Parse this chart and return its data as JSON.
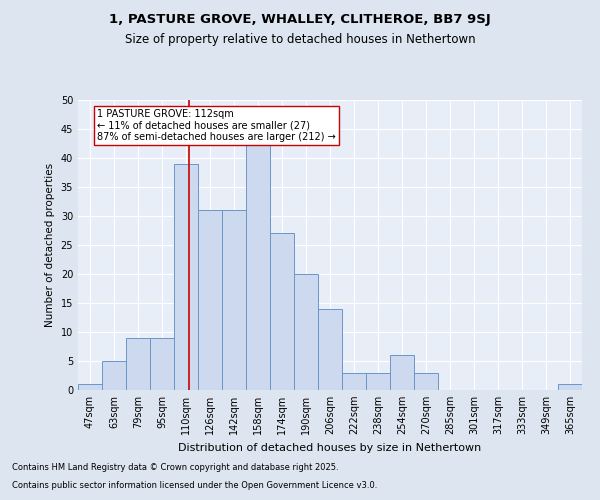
{
  "title1": "1, PASTURE GROVE, WHALLEY, CLITHEROE, BB7 9SJ",
  "title2": "Size of property relative to detached houses in Nethertown",
  "xlabel": "Distribution of detached houses by size in Nethertown",
  "ylabel": "Number of detached properties",
  "categories": [
    "47sqm",
    "63sqm",
    "79sqm",
    "95sqm",
    "110sqm",
    "126sqm",
    "142sqm",
    "158sqm",
    "174sqm",
    "190sqm",
    "206sqm",
    "222sqm",
    "238sqm",
    "254sqm",
    "270sqm",
    "285sqm",
    "301sqm",
    "317sqm",
    "333sqm",
    "349sqm",
    "365sqm"
  ],
  "values": [
    1,
    5,
    9,
    9,
    39,
    31,
    31,
    46,
    27,
    20,
    14,
    3,
    3,
    6,
    3,
    0,
    0,
    0,
    0,
    0,
    1
  ],
  "bar_color": "#ccd9ee",
  "bar_edge_color": "#6a96c8",
  "vline_color": "#cc0000",
  "vline_pos": 4.125,
  "annotation_text": "1 PASTURE GROVE: 112sqm\n← 11% of detached houses are smaller (27)\n87% of semi-detached houses are larger (212) →",
  "annotation_box_color": "#ffffff",
  "annotation_box_edge": "#cc0000",
  "bg_color": "#dde6f0",
  "plot_bg_color": "#e8eef8",
  "grid_color": "#ffffff",
  "footer1": "Contains HM Land Registry data © Crown copyright and database right 2025.",
  "footer2": "Contains public sector information licensed under the Open Government Licence v3.0.",
  "ylim": [
    0,
    50
  ],
  "yticks": [
    0,
    5,
    10,
    15,
    20,
    25,
    30,
    35,
    40,
    45,
    50
  ],
  "title1_fontsize": 9.5,
  "title2_fontsize": 8.5,
  "xlabel_fontsize": 8,
  "ylabel_fontsize": 7.5,
  "tick_fontsize": 7,
  "annot_fontsize": 7,
  "footer_fontsize": 6
}
